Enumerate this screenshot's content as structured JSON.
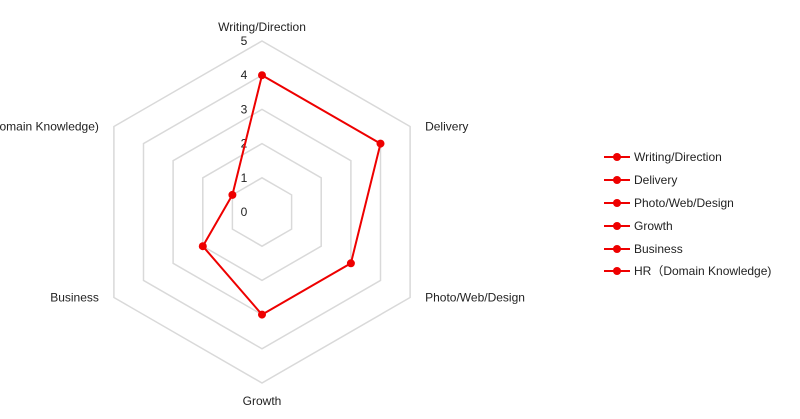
{
  "chart_data": {
    "type": "radar",
    "title": "",
    "axes": [
      "Writing/Direction",
      "Delivery",
      "Photo/Web/Design",
      "Growth",
      "Business",
      "HR（Domain  Knowledge)"
    ],
    "ticks": [
      "0",
      "1",
      "2",
      "3",
      "4",
      "5"
    ],
    "rlim": [
      0,
      5
    ],
    "grid": true,
    "legend_position": "right",
    "series": [
      {
        "name": "Writing/Direction",
        "color": "#ee0000",
        "values": [
          4.0,
          4.0,
          3.0,
          3.0,
          2.0,
          1.0
        ]
      }
    ],
    "legend": [
      "Writing/Direction",
      "Delivery",
      "Photo/Web/Design",
      "Growth",
      "Business",
      "HR（Domain  Knowledge)"
    ]
  }
}
